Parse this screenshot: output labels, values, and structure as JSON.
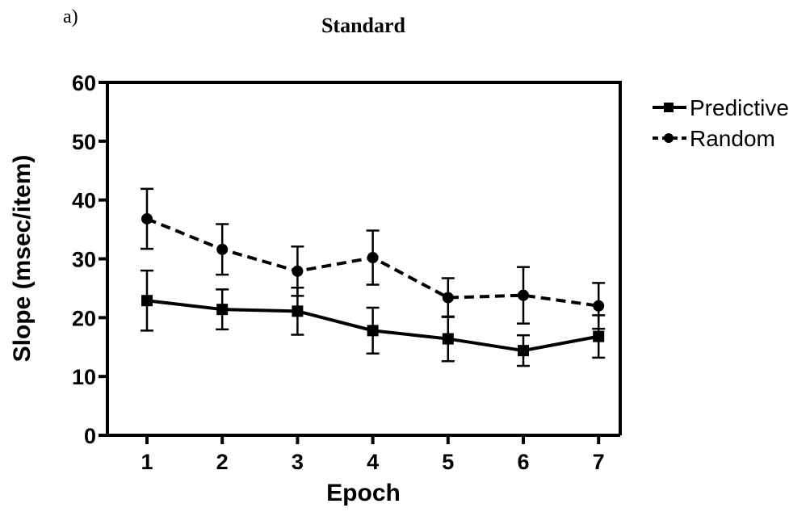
{
  "panel_label": "a)",
  "chart_data": {
    "type": "line",
    "title": "Standard",
    "xlabel": "Epoch",
    "ylabel": "Slope (msec/item)",
    "categories": [
      "1",
      "2",
      "3",
      "4",
      "5",
      "6",
      "7"
    ],
    "ylim": [
      0,
      60
    ],
    "yticks": [
      "0",
      "10",
      "20",
      "30",
      "40",
      "50",
      "60"
    ],
    "grid": false,
    "legend_position": "right",
    "series": [
      {
        "name": "Predictive",
        "marker": "square",
        "line_style": "solid",
        "color": "#000000",
        "values": [
          22.9,
          21.4,
          21.1,
          17.8,
          16.4,
          14.4,
          16.8
        ],
        "error": [
          5.1,
          3.4,
          4.0,
          3.9,
          3.8,
          2.6,
          3.6
        ]
      },
      {
        "name": "Random",
        "marker": "circle",
        "line_style": "dashed",
        "color": "#000000",
        "values": [
          36.8,
          31.6,
          27.9,
          30.2,
          23.4,
          23.8,
          22.0
        ],
        "error": [
          5.1,
          4.3,
          4.2,
          4.6,
          3.3,
          4.8,
          3.9
        ]
      }
    ]
  }
}
